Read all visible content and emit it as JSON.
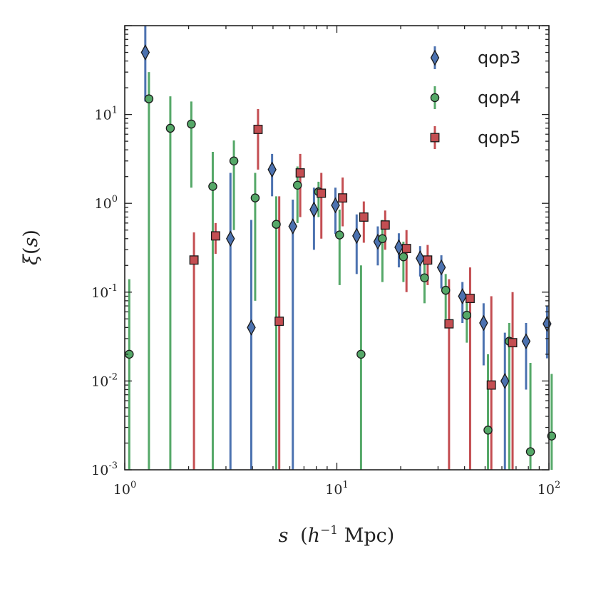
{
  "chart_data": {
    "type": "scatter",
    "xscale": "log",
    "yscale": "log",
    "xlim": [
      1,
      100
    ],
    "ylim": [
      0.001,
      100
    ],
    "xlabel_parts": {
      "var": "s",
      "open": "(",
      "base": "h",
      "exp": "−1",
      "unit": " Mpc",
      "close": ")"
    },
    "ylabel_parts": {
      "sym": "ξ",
      "open": "(",
      "var": "s",
      "close": ")"
    },
    "x_ticks": [
      {
        "value": 1,
        "base": "10",
        "exp": "0"
      },
      {
        "value": 10,
        "base": "10",
        "exp": "1"
      },
      {
        "value": 100,
        "base": "10",
        "exp": "2"
      }
    ],
    "y_ticks": [
      {
        "value": 0.001,
        "base": "10",
        "exp": "-3"
      },
      {
        "value": 0.01,
        "base": "10",
        "exp": "-2"
      },
      {
        "value": 0.1,
        "base": "10",
        "exp": "-1"
      },
      {
        "value": 1,
        "base": "10",
        "exp": "0"
      },
      {
        "value": 10,
        "base": "10",
        "exp": "1"
      }
    ],
    "legend_position": "top-right",
    "series": [
      {
        "name": "qop3",
        "marker": "diamond",
        "color": "#4c72b0",
        "points": [
          {
            "x": 1.25,
            "y": 50,
            "lo": 14,
            "hi": 100
          },
          {
            "x": 3.15,
            "y": 0.4,
            "lo": 0.001,
            "hi": 2.2
          },
          {
            "x": 3.95,
            "y": 0.04,
            "lo": 0.001,
            "hi": 0.65
          },
          {
            "x": 4.95,
            "y": 2.4,
            "lo": 1.2,
            "hi": 3.6
          },
          {
            "x": 6.2,
            "y": 0.55,
            "lo": 0.001,
            "hi": 1.1
          },
          {
            "x": 7.8,
            "y": 0.85,
            "lo": 0.3,
            "hi": 1.5
          },
          {
            "x": 9.85,
            "y": 0.95,
            "lo": 0.45,
            "hi": 1.5
          },
          {
            "x": 12.4,
            "y": 0.43,
            "lo": 0.16,
            "hi": 0.75
          },
          {
            "x": 15.6,
            "y": 0.37,
            "lo": 0.2,
            "hi": 0.55
          },
          {
            "x": 19.6,
            "y": 0.32,
            "lo": 0.19,
            "hi": 0.46
          },
          {
            "x": 24.7,
            "y": 0.24,
            "lo": 0.15,
            "hi": 0.33
          },
          {
            "x": 31.1,
            "y": 0.19,
            "lo": 0.11,
            "hi": 0.26
          },
          {
            "x": 39.1,
            "y": 0.09,
            "lo": 0.045,
            "hi": 0.13
          },
          {
            "x": 49.2,
            "y": 0.045,
            "lo": 0.015,
            "hi": 0.075
          },
          {
            "x": 62,
            "y": 0.01,
            "lo": 0.001,
            "hi": 0.035
          },
          {
            "x": 78,
            "y": 0.028,
            "lo": 0.008,
            "hi": 0.045
          },
          {
            "x": 98,
            "y": 0.044,
            "lo": 0.018,
            "hi": 0.07
          }
        ]
      },
      {
        "name": "qop4",
        "marker": "circle",
        "color": "#55a868",
        "points": [
          {
            "x": 1.05,
            "y": 0.02,
            "lo": 0.001,
            "hi": 0.14
          },
          {
            "x": 1.3,
            "y": 15,
            "lo": 0.001,
            "hi": 30
          },
          {
            "x": 1.64,
            "y": 7,
            "lo": 0.001,
            "hi": 16
          },
          {
            "x": 2.06,
            "y": 7.8,
            "lo": 1.5,
            "hi": 14
          },
          {
            "x": 2.6,
            "y": 1.55,
            "lo": 0.001,
            "hi": 3.8
          },
          {
            "x": 3.27,
            "y": 3,
            "lo": 0.5,
            "hi": 5.1
          },
          {
            "x": 4.12,
            "y": 1.15,
            "lo": 0.08,
            "hi": 2.2
          },
          {
            "x": 5.18,
            "y": 0.58,
            "lo": 0.001,
            "hi": 1.2
          },
          {
            "x": 6.52,
            "y": 1.6,
            "lo": 0.6,
            "hi": 2.6
          },
          {
            "x": 8.2,
            "y": 1.35,
            "lo": 0.7,
            "hi": 1.75
          },
          {
            "x": 10.3,
            "y": 0.44,
            "lo": 0.12,
            "hi": 0.85
          },
          {
            "x": 13,
            "y": 0.02,
            "lo": 0.001,
            "hi": 0.2
          },
          {
            "x": 16.4,
            "y": 0.4,
            "lo": 0.13,
            "hi": 0.65
          },
          {
            "x": 20.6,
            "y": 0.25,
            "lo": 0.13,
            "hi": 0.37
          },
          {
            "x": 25.9,
            "y": 0.145,
            "lo": 0.075,
            "hi": 0.22
          },
          {
            "x": 32.6,
            "y": 0.105,
            "lo": 0.05,
            "hi": 0.16
          },
          {
            "x": 41,
            "y": 0.055,
            "lo": 0.027,
            "hi": 0.085
          },
          {
            "x": 51.6,
            "y": 0.0028,
            "lo": 0.001,
            "hi": 0.02
          },
          {
            "x": 65,
            "y": 0.028,
            "lo": 0.001,
            "hi": 0.045
          },
          {
            "x": 81.8,
            "y": 0.0016,
            "lo": 0.001,
            "hi": 0.016
          },
          {
            "x": 103,
            "y": 0.0024,
            "lo": 0.001,
            "hi": 0.012
          }
        ]
      },
      {
        "name": "qop5",
        "marker": "square",
        "color": "#c44e52",
        "points": [
          {
            "x": 2.12,
            "y": 0.23,
            "lo": 0.001,
            "hi": 0.47
          },
          {
            "x": 2.68,
            "y": 0.43,
            "lo": 0.27,
            "hi": 0.6
          },
          {
            "x": 4.25,
            "y": 6.8,
            "lo": 2.4,
            "hi": 11.5
          },
          {
            "x": 5.35,
            "y": 0.047,
            "lo": 0.001,
            "hi": 1.2
          },
          {
            "x": 6.72,
            "y": 2.2,
            "lo": 0.7,
            "hi": 3.6
          },
          {
            "x": 8.45,
            "y": 1.3,
            "lo": 0.4,
            "hi": 2.2
          },
          {
            "x": 10.65,
            "y": 1.15,
            "lo": 0.55,
            "hi": 1.95
          },
          {
            "x": 13.4,
            "y": 0.7,
            "lo": 0.36,
            "hi": 1.05
          },
          {
            "x": 16.9,
            "y": 0.57,
            "lo": 0.3,
            "hi": 0.83
          },
          {
            "x": 21.3,
            "y": 0.31,
            "lo": 0.1,
            "hi": 0.5
          },
          {
            "x": 26.8,
            "y": 0.23,
            "lo": 0.12,
            "hi": 0.34
          },
          {
            "x": 33.8,
            "y": 0.044,
            "lo": 0.001,
            "hi": 0.14
          },
          {
            "x": 42.5,
            "y": 0.085,
            "lo": 0.001,
            "hi": 0.19
          },
          {
            "x": 53.5,
            "y": 0.009,
            "lo": 0.001,
            "hi": 0.09
          },
          {
            "x": 67.4,
            "y": 0.027,
            "lo": 0.001,
            "hi": 0.1
          }
        ]
      }
    ]
  }
}
